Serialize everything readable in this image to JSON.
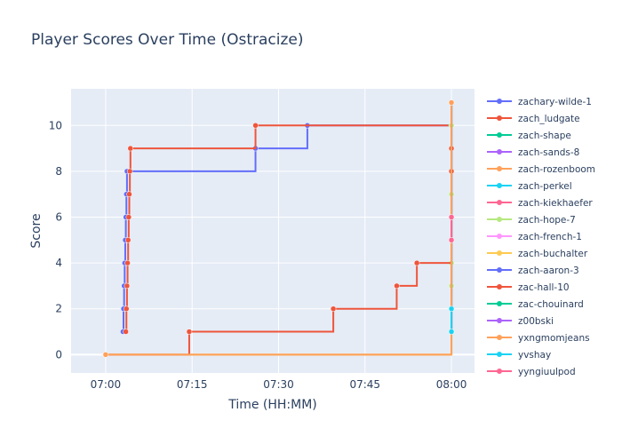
{
  "chart_data": {
    "type": "line",
    "title": "Player Scores Over Time (Ostracize)",
    "xlabel": "Time (HH:MM)",
    "ylabel": "Score",
    "x_range_minutes": [
      -6,
      64
    ],
    "ylim": [
      -0.8,
      11.6
    ],
    "x_ticks": [
      {
        "minute": 0,
        "label": "07:00"
      },
      {
        "minute": 15,
        "label": "07:15"
      },
      {
        "minute": 30,
        "label": "07:30"
      },
      {
        "minute": 45,
        "label": "07:45"
      },
      {
        "minute": 60,
        "label": "08:00"
      }
    ],
    "y_ticks": [
      0,
      2,
      4,
      6,
      8,
      10
    ],
    "line_shape": "step",
    "grid": true,
    "legend_position": "right",
    "series": [
      {
        "name": "zachary-wilde-1",
        "color": "#636efa",
        "points": [
          [
            3.0,
            1
          ],
          [
            3.1,
            2
          ],
          [
            3.2,
            3
          ],
          [
            3.3,
            4
          ],
          [
            3.4,
            5
          ],
          [
            3.5,
            6
          ],
          [
            3.6,
            7
          ],
          [
            3.7,
            8
          ],
          [
            26.0,
            9
          ],
          [
            35.0,
            10
          ],
          [
            60.0,
            10
          ]
        ]
      },
      {
        "name": "zach_ludgate",
        "color": "#ef553b",
        "points": [
          [
            3.5,
            1
          ],
          [
            3.6,
            2
          ],
          [
            3.7,
            3
          ],
          [
            3.8,
            4
          ],
          [
            3.9,
            5
          ],
          [
            4.0,
            6
          ],
          [
            4.1,
            7
          ],
          [
            4.2,
            8
          ],
          [
            4.3,
            9
          ],
          [
            26.0,
            10
          ],
          [
            60.0,
            10
          ]
        ]
      },
      {
        "name": "zach-shape",
        "color": "#00cc96",
        "points": [
          [
            60.0,
            1
          ],
          [
            60.0,
            11
          ]
        ]
      },
      {
        "name": "zach-sands-8",
        "color": "#ab63fa",
        "points": [
          [
            60.0,
            1
          ],
          [
            60.0,
            11
          ]
        ]
      },
      {
        "name": "zach-rozenboom",
        "color": "#ffa15a",
        "points": [
          [
            0.0,
            0
          ],
          [
            60.0,
            11
          ]
        ]
      },
      {
        "name": "zach-perkel",
        "color": "#19d3f3",
        "points": [
          [
            60.0,
            1
          ],
          [
            60.0,
            11
          ]
        ]
      },
      {
        "name": "zach-kiekhaefer",
        "color": "#ff6692",
        "points": [
          [
            60.0,
            5
          ],
          [
            60.0,
            6
          ]
        ]
      },
      {
        "name": "zach-hope-7",
        "color": "#b6e880",
        "points": [
          [
            60.0,
            2
          ],
          [
            60.0,
            3
          ],
          [
            60.0,
            4
          ],
          [
            60.0,
            7
          ],
          [
            60.0,
            10
          ],
          [
            60.0,
            11
          ]
        ]
      },
      {
        "name": "zach-french-1",
        "color": "#ff97ff",
        "points": [
          [
            60.0,
            1
          ],
          [
            60.0,
            11
          ]
        ]
      },
      {
        "name": "zach-buchalter",
        "color": "#fecb52",
        "points": [
          [
            0.0,
            0
          ],
          [
            60.0,
            11
          ]
        ]
      },
      {
        "name": "zach-aaron-3",
        "color": "#636efa",
        "points": [
          [
            60.0,
            1
          ],
          [
            60.0,
            11
          ]
        ]
      },
      {
        "name": "zac-hall-10",
        "color": "#ef553b",
        "points": [
          [
            0.0,
            0
          ],
          [
            14.5,
            1
          ],
          [
            39.5,
            2
          ],
          [
            50.5,
            3
          ],
          [
            54.0,
            4
          ],
          [
            60.0,
            8
          ],
          [
            60.0,
            9
          ]
        ]
      },
      {
        "name": "zac-chouinard",
        "color": "#00cc96",
        "points": [
          [
            60.0,
            1
          ],
          [
            60.0,
            11
          ]
        ]
      },
      {
        "name": "z00bski",
        "color": "#ab63fa",
        "points": [
          [
            60.0,
            1
          ],
          [
            60.0,
            11
          ]
        ]
      },
      {
        "name": "yxngmomjeans",
        "color": "#ffa15a",
        "points": [
          [
            0.0,
            0
          ],
          [
            60.0,
            11
          ]
        ]
      },
      {
        "name": "yvshay",
        "color": "#19d3f3",
        "points": [
          [
            60.0,
            1
          ],
          [
            60.0,
            2
          ]
        ]
      },
      {
        "name": "yyngiuulpod",
        "color": "#ff6692",
        "points": [
          [
            60.0,
            5
          ],
          [
            60.0,
            6
          ]
        ]
      }
    ]
  }
}
